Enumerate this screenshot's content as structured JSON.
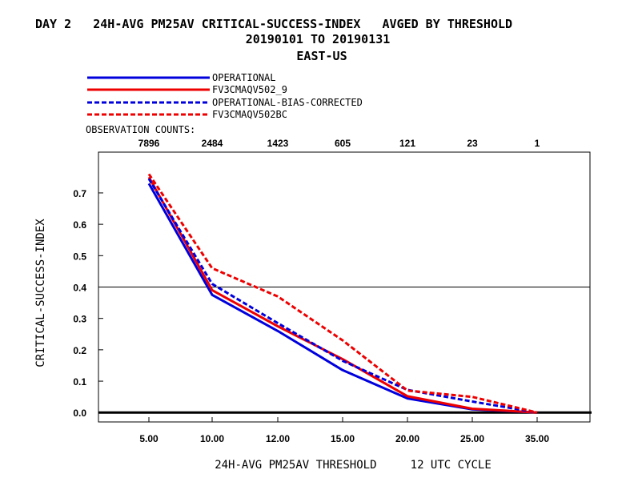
{
  "header": {
    "title_line1": "DAY 2   24H-AVG PM25AV CRITICAL-SUCCESS-INDEX   AVGED BY THRESHOLD",
    "title_line2": "20190101 TO 20190131",
    "title_line3": "EAST-US"
  },
  "obs": {
    "label": "OBSERVATION COUNTS:",
    "counts": [
      "7896",
      "2484",
      "1423",
      "605",
      "121",
      "23",
      "1"
    ]
  },
  "chart_data": {
    "type": "line",
    "categories": [
      "5.00",
      "10.00",
      "12.00",
      "15.00",
      "20.00",
      "25.00",
      "35.00"
    ],
    "xlabel": "24H-AVG PM25AV THRESHOLD     12 UTC CYCLE",
    "ylabel": "CRITICAL-SUCCESS-INDEX",
    "ylim": [
      -0.03,
      0.83
    ],
    "yticks": [
      "0.0",
      "0.1",
      "0.2",
      "0.3",
      "0.4",
      "0.5",
      "0.6",
      "0.7"
    ],
    "reference_line": 0.4,
    "grid": false,
    "legend_position": "top-left",
    "series": [
      {
        "name": "OPERATIONAL",
        "color": "#0000dd",
        "dashed": false,
        "values": [
          0.73,
          0.375,
          0.26,
          0.135,
          0.045,
          0.01,
          0.0
        ]
      },
      {
        "name": "FV3CMAQV502_9",
        "color": "#ee0000",
        "dashed": false,
        "values": [
          0.75,
          0.39,
          0.275,
          0.17,
          0.052,
          0.012,
          0.0
        ]
      },
      {
        "name": "OPERATIONAL-BIAS-CORRECTED",
        "color": "#0000dd",
        "dashed": true,
        "values": [
          0.745,
          0.41,
          0.285,
          0.165,
          0.072,
          0.035,
          0.0
        ]
      },
      {
        "name": "FV3CMAQV502BC",
        "color": "#ee0000",
        "dashed": true,
        "values": [
          0.76,
          0.46,
          0.37,
          0.23,
          0.07,
          0.05,
          0.0
        ]
      }
    ]
  }
}
